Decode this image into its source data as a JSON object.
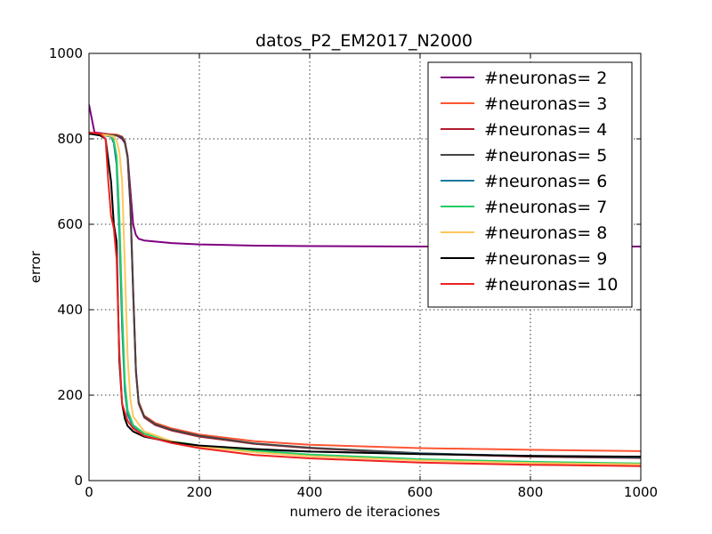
{
  "chart_data": {
    "type": "line",
    "title": "datos_P2_EM2017_N2000",
    "xlabel": "numero de iteraciones",
    "ylabel": "error",
    "xlim": [
      0,
      1000
    ],
    "ylim": [
      0,
      1000
    ],
    "xticks": [
      0,
      200,
      400,
      600,
      800,
      1000
    ],
    "yticks": [
      0,
      200,
      400,
      600,
      800,
      1000
    ],
    "xtick_labels": [
      "0",
      "200",
      "400",
      "600",
      "800",
      "1000"
    ],
    "ytick_labels": [
      "0",
      "200",
      "400",
      "600",
      "800",
      "1000"
    ],
    "grid": true,
    "legend_position": "top-right",
    "series": [
      {
        "name": "#neuronas= 2",
        "color": "#800080",
        "x": [
          0,
          10,
          30,
          50,
          60,
          65,
          70,
          75,
          80,
          85,
          90,
          100,
          150,
          200,
          300,
          400,
          600,
          800,
          1000
        ],
        "y": [
          880,
          815,
          812,
          808,
          800,
          790,
          760,
          680,
          600,
          575,
          566,
          562,
          556,
          553,
          550,
          549,
          548,
          548,
          548
        ]
      },
      {
        "name": "#neuronas= 3",
        "color": "#ff5533",
        "x": [
          0,
          20,
          50,
          60,
          65,
          70,
          75,
          80,
          85,
          90,
          100,
          120,
          150,
          200,
          300,
          400,
          600,
          800,
          1000
        ],
        "y": [
          815,
          812,
          810,
          805,
          795,
          760,
          650,
          450,
          260,
          185,
          152,
          135,
          122,
          108,
          92,
          84,
          76,
          72,
          69
        ]
      },
      {
        "name": "#neuronas= 4",
        "color": "#b01c2e",
        "x": [
          0,
          20,
          50,
          60,
          65,
          70,
          75,
          80,
          85,
          90,
          100,
          120,
          150,
          200,
          300,
          400,
          600,
          800,
          1000
        ],
        "y": [
          812,
          810,
          808,
          803,
          792,
          755,
          640,
          440,
          255,
          180,
          148,
          130,
          117,
          103,
          86,
          76,
          63,
          56,
          53
        ]
      },
      {
        "name": "#neuronas= 5",
        "color": "#444444",
        "x": [
          0,
          20,
          50,
          60,
          65,
          70,
          75,
          80,
          85,
          90,
          100,
          120,
          150,
          200,
          300,
          400,
          600,
          800,
          1000
        ],
        "y": [
          812,
          810,
          808,
          804,
          793,
          758,
          645,
          445,
          258,
          182,
          150,
          132,
          119,
          105,
          87,
          77,
          64,
          57,
          54
        ]
      },
      {
        "name": "#neuronas= 6",
        "color": "#1a7a9e",
        "x": [
          0,
          20,
          40,
          45,
          50,
          55,
          60,
          65,
          70,
          80,
          100,
          150,
          200,
          300,
          400,
          600,
          800,
          1000
        ],
        "y": [
          812,
          810,
          805,
          790,
          740,
          580,
          360,
          210,
          155,
          125,
          105,
          88,
          80,
          72,
          68,
          63,
          58,
          55
        ]
      },
      {
        "name": "#neuronas= 7",
        "color": "#22cc66",
        "x": [
          0,
          20,
          40,
          45,
          50,
          55,
          60,
          65,
          70,
          80,
          100,
          150,
          200,
          300,
          400,
          600,
          800,
          1000
        ],
        "y": [
          812,
          810,
          807,
          795,
          760,
          620,
          400,
          230,
          165,
          130,
          110,
          92,
          82,
          70,
          61,
          50,
          44,
          40
        ]
      },
      {
        "name": "#neuronas= 8",
        "color": "#ffc65c",
        "x": [
          0,
          20,
          45,
          50,
          55,
          60,
          65,
          70,
          75,
          80,
          100,
          150,
          200,
          300,
          400,
          600,
          800,
          1000
        ],
        "y": [
          812,
          810,
          806,
          795,
          770,
          700,
          500,
          290,
          190,
          150,
          115,
          92,
          80,
          66,
          57,
          47,
          41,
          38
        ]
      },
      {
        "name": "#neuronas= 9",
        "color": "#000000",
        "x": [
          0,
          20,
          30,
          40,
          45,
          50,
          55,
          60,
          65,
          70,
          80,
          100,
          150,
          200,
          300,
          400,
          600,
          800,
          1000
        ],
        "y": [
          812,
          808,
          800,
          700,
          600,
          560,
          280,
          180,
          145,
          128,
          115,
          103,
          90,
          82,
          74,
          68,
          62,
          58,
          56
        ]
      },
      {
        "name": "#neuronas= 10",
        "color": "#ee2222",
        "x": [
          0,
          20,
          30,
          35,
          40,
          45,
          50,
          55,
          60,
          70,
          80,
          100,
          150,
          200,
          300,
          400,
          600,
          800,
          1000
        ],
        "y": [
          815,
          812,
          800,
          700,
          620,
          590,
          520,
          300,
          180,
          140,
          122,
          105,
          88,
          76,
          60,
          52,
          42,
          37,
          34
        ]
      }
    ]
  }
}
